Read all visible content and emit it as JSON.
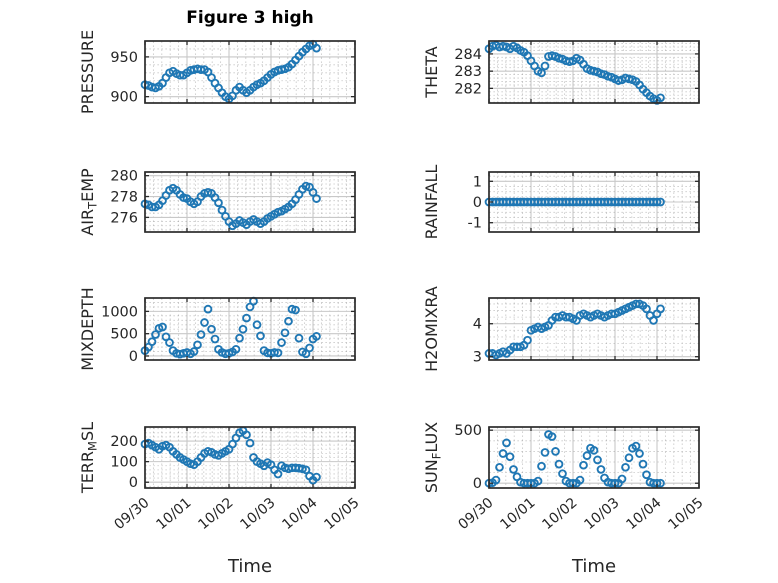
{
  "title": "Figure 3 high",
  "xlabel": "Time",
  "accent_color": "#1f77b4",
  "chart_data": {
    "type": "scatter",
    "marker": "open-circle",
    "grid": "major-solid-plus-minor-dotted",
    "x_unit": "hours since 09/30 00:00",
    "xlim_days": [
      0,
      5
    ],
    "x_tick_labels": [
      "09/30",
      "10/01",
      "10/02",
      "10/03",
      "10/04",
      "10/05"
    ],
    "x_hours": [
      0,
      2,
      4,
      6,
      8,
      10,
      12,
      14,
      16,
      18,
      20,
      22,
      24,
      26,
      28,
      30,
      32,
      34,
      36,
      38,
      40,
      42,
      44,
      46,
      48,
      50,
      52,
      54,
      56,
      58,
      60,
      62,
      64,
      66,
      68,
      70,
      72,
      74,
      76,
      78,
      80,
      82,
      84,
      86,
      88,
      90,
      92,
      94,
      96,
      98
    ],
    "subplots": [
      {
        "id": "pressure",
        "ylabel": "PRESSURE",
        "ylabel_parts": [
          {
            "text": "PRESSURE",
            "sub": false
          }
        ],
        "yticks": [
          900,
          950
        ],
        "ylim": [
          892,
          970
        ],
        "y_minor_step": 10,
        "values": [
          915,
          914,
          912,
          911,
          913,
          917,
          924,
          930,
          932,
          929,
          927,
          927,
          930,
          933,
          934,
          935,
          934,
          934,
          931,
          924,
          917,
          911,
          905,
          900,
          897,
          901,
          908,
          912,
          908,
          905,
          908,
          912,
          915,
          917,
          920,
          924,
          928,
          931,
          933,
          934,
          935,
          937,
          941,
          946,
          951,
          956,
          960,
          964,
          966,
          961
        ]
      },
      {
        "id": "theta",
        "ylabel": "THETA",
        "ylabel_parts": [
          {
            "text": "THETA",
            "sub": false
          }
        ],
        "yticks": [
          282,
          283,
          284
        ],
        "ylim": [
          281.15,
          284.75
        ],
        "y_minor_step": 0.2,
        "values": [
          284.3,
          284.45,
          284.5,
          284.4,
          284.45,
          284.4,
          284.3,
          284.45,
          284.35,
          284.2,
          284.1,
          283.9,
          283.6,
          283.3,
          283.0,
          282.9,
          283.3,
          283.85,
          283.9,
          283.85,
          283.75,
          283.7,
          283.6,
          283.55,
          283.6,
          283.75,
          283.65,
          283.4,
          283.15,
          283.05,
          283.0,
          282.95,
          282.85,
          282.8,
          282.7,
          282.65,
          282.55,
          282.45,
          282.5,
          282.6,
          282.55,
          282.5,
          282.4,
          282.2,
          281.95,
          281.75,
          281.55,
          281.4,
          281.3,
          281.45
        ]
      },
      {
        "id": "air-temp",
        "ylabel": "AIR_TEMP",
        "ylabel_parts": [
          {
            "text": "AIR",
            "sub": false
          },
          {
            "text": "T",
            "sub": true
          },
          {
            "text": "EMP",
            "sub": false
          }
        ],
        "yticks": [
          276,
          278,
          280
        ],
        "ylim": [
          274.6,
          280.35
        ],
        "y_minor_step": 0.4,
        "values": [
          277.3,
          277.2,
          277.0,
          277.0,
          277.2,
          277.6,
          278.1,
          278.6,
          278.8,
          278.6,
          278.2,
          277.9,
          277.8,
          277.5,
          277.3,
          277.5,
          278.0,
          278.3,
          278.4,
          278.3,
          277.9,
          277.4,
          276.7,
          276.1,
          275.6,
          275.2,
          275.4,
          275.7,
          275.5,
          275.3,
          275.6,
          275.8,
          275.6,
          275.4,
          275.6,
          275.9,
          276.1,
          276.3,
          276.5,
          276.6,
          276.8,
          277.0,
          277.3,
          277.7,
          278.2,
          278.7,
          279.0,
          278.9,
          278.4,
          277.8
        ]
      },
      {
        "id": "rainfall",
        "ylabel": "RAINFALL",
        "ylabel_parts": [
          {
            "text": "RAINFALL",
            "sub": false
          }
        ],
        "yticks": [
          -1,
          0,
          1
        ],
        "ylim": [
          -1.45,
          1.45
        ],
        "y_minor_step": 0.25,
        "values": [
          0,
          0,
          0,
          0,
          0,
          0,
          0,
          0,
          0,
          0,
          0,
          0,
          0,
          0,
          0,
          0,
          0,
          0,
          0,
          0,
          0,
          0,
          0,
          0,
          0,
          0,
          0,
          0,
          0,
          0,
          0,
          0,
          0,
          0,
          0,
          0,
          0,
          0,
          0,
          0,
          0,
          0,
          0,
          0,
          0,
          0,
          0,
          0,
          0,
          0
        ]
      },
      {
        "id": "mixdepth",
        "ylabel": "MIXDEPTH",
        "ylabel_parts": [
          {
            "text": "MIXDEPTH",
            "sub": false
          }
        ],
        "yticks": [
          0,
          500,
          1000
        ],
        "ylim": [
          -90,
          1300
        ],
        "y_minor_step": 100,
        "values": [
          120,
          200,
          320,
          480,
          620,
          650,
          430,
          300,
          120,
          60,
          40,
          60,
          80,
          50,
          100,
          250,
          480,
          750,
          1050,
          600,
          380,
          150,
          80,
          50,
          60,
          90,
          150,
          400,
          600,
          850,
          1100,
          1230,
          700,
          450,
          120,
          70,
          60,
          80,
          70,
          300,
          520,
          780,
          1050,
          1030,
          400,
          90,
          50,
          180,
          380,
          440
        ]
      },
      {
        "id": "h2omixra",
        "ylabel": "H2OMIXRA",
        "ylabel_parts": [
          {
            "text": "H2OMIXRA",
            "sub": false
          }
        ],
        "yticks": [
          3,
          4
        ],
        "ylim": [
          2.9,
          4.78
        ],
        "y_minor_step": 0.2,
        "values": [
          3.1,
          3.1,
          3.05,
          3.1,
          3.15,
          3.1,
          3.2,
          3.3,
          3.3,
          3.3,
          3.35,
          3.5,
          3.8,
          3.85,
          3.9,
          3.85,
          3.9,
          3.95,
          4.1,
          4.2,
          4.2,
          4.25,
          4.2,
          4.2,
          4.15,
          4.1,
          4.25,
          4.3,
          4.25,
          4.2,
          4.25,
          4.3,
          4.25,
          4.2,
          4.25,
          4.3,
          4.3,
          4.35,
          4.4,
          4.45,
          4.5,
          4.55,
          4.6,
          4.6,
          4.55,
          4.45,
          4.25,
          4.1,
          4.3,
          4.45
        ]
      },
      {
        "id": "terr-msl",
        "ylabel": "TERR_MSL",
        "ylabel_parts": [
          {
            "text": "TERR",
            "sub": false
          },
          {
            "text": "M",
            "sub": true
          },
          {
            "text": "SL",
            "sub": false
          }
        ],
        "yticks": [
          0,
          100,
          200
        ],
        "ylim": [
          -28,
          268
        ],
        "y_minor_step": 20,
        "values": [
          185,
          190,
          180,
          170,
          160,
          175,
          180,
          170,
          150,
          135,
          120,
          110,
          100,
          90,
          85,
          100,
          120,
          140,
          150,
          145,
          135,
          130,
          140,
          150,
          160,
          185,
          215,
          240,
          250,
          230,
          190,
          120,
          100,
          90,
          80,
          95,
          85,
          60,
          40,
          80,
          70,
          65,
          70,
          70,
          68,
          65,
          60,
          30,
          10,
          25
        ]
      },
      {
        "id": "sun-flux",
        "ylabel": "SUN_FLUX",
        "ylabel_parts": [
          {
            "text": "SUN",
            "sub": false
          },
          {
            "text": "F",
            "sub": true
          },
          {
            "text": "LUX",
            "sub": false
          }
        ],
        "yticks": [
          0,
          500
        ],
        "ylim": [
          -45,
          530
        ],
        "y_minor_step": 100,
        "values": [
          0,
          5,
          30,
          150,
          280,
          380,
          250,
          130,
          60,
          10,
          0,
          0,
          0,
          0,
          20,
          160,
          290,
          460,
          440,
          300,
          180,
          90,
          20,
          0,
          0,
          0,
          30,
          170,
          260,
          330,
          310,
          220,
          130,
          50,
          10,
          0,
          0,
          0,
          40,
          150,
          240,
          330,
          350,
          280,
          180,
          80,
          10,
          0,
          0,
          0
        ]
      }
    ]
  }
}
